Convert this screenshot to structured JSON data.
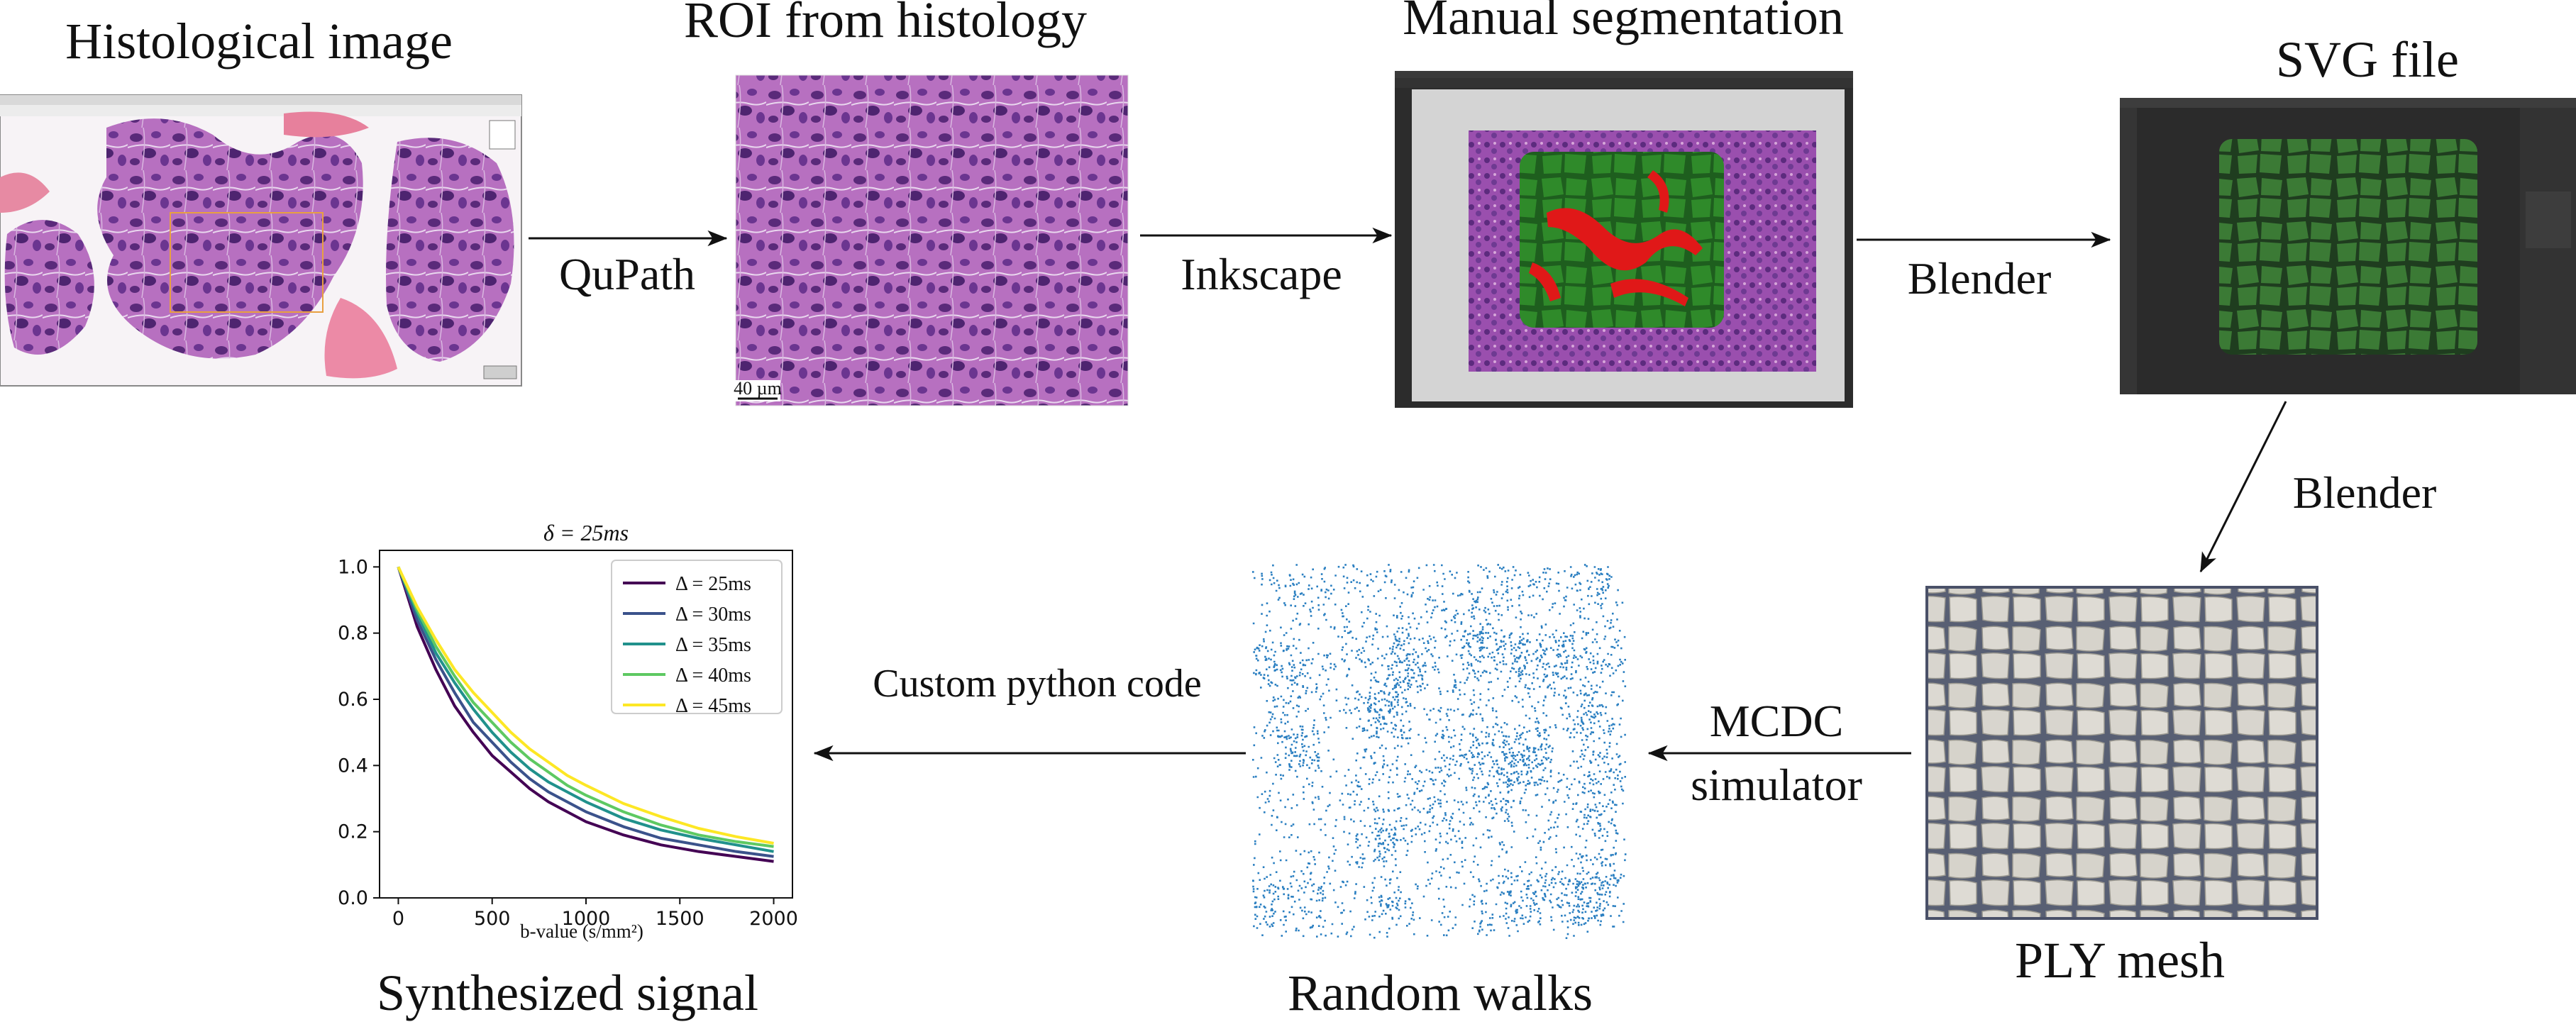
{
  "titles": {
    "histological_image": "Histological image",
    "roi": "ROI from histology",
    "manual_segmentation": "Manual segmentation",
    "svg_file": "SVG file",
    "ply_mesh": "PLY mesh",
    "random_walks": "Random walks",
    "synthesized_signal": "Synthesized signal"
  },
  "tools": {
    "qupath": "QuPath",
    "inkscape": "Inkscape",
    "blender_1": "Blender",
    "blender_2": "Blender",
    "mcdc_line1": "MCDC",
    "mcdc_line2": "simulator",
    "custom_code": "Custom python code"
  },
  "roi_scale_bar": "40 µm",
  "colors": {
    "tissue": "#9c4aa6",
    "segmentation_green": "#2f8a2a",
    "segmentation_red": "#e01818",
    "blender_bg": "#2b2b2b",
    "mesh_cell": "#d9d6cf",
    "mesh_bg": "#4a5168",
    "walk_points": "#2a7fc1"
  },
  "chart_data": {
    "type": "line",
    "title": "δ = 25ms",
    "xlabel": "b-value (s/mm²)",
    "ylabel": "",
    "xlim": [
      0,
      2000
    ],
    "ylim": [
      0,
      1.05
    ],
    "xticks": [
      0,
      500,
      1000,
      1500,
      2000
    ],
    "yticks": [
      0.0,
      0.2,
      0.4,
      0.6,
      0.8,
      1.0
    ],
    "legend_position": "top-right",
    "x": [
      0,
      100,
      200,
      300,
      400,
      500,
      600,
      700,
      800,
      900,
      1000,
      1200,
      1400,
      1600,
      1800,
      2000
    ],
    "series": [
      {
        "name": "Δ = 25ms",
        "color": "#440154",
        "values": [
          1.0,
          0.82,
          0.69,
          0.58,
          0.5,
          0.43,
          0.38,
          0.33,
          0.29,
          0.26,
          0.23,
          0.19,
          0.16,
          0.14,
          0.125,
          0.11
        ]
      },
      {
        "name": "Δ = 30ms",
        "color": "#3b528b",
        "values": [
          1.0,
          0.84,
          0.72,
          0.62,
          0.53,
          0.47,
          0.41,
          0.36,
          0.32,
          0.29,
          0.26,
          0.215,
          0.18,
          0.16,
          0.14,
          0.125
        ]
      },
      {
        "name": "Δ = 35ms",
        "color": "#21918c",
        "values": [
          1.0,
          0.86,
          0.74,
          0.65,
          0.57,
          0.5,
          0.44,
          0.39,
          0.35,
          0.32,
          0.29,
          0.24,
          0.205,
          0.18,
          0.16,
          0.14
        ]
      },
      {
        "name": "Δ = 40ms",
        "color": "#5ec962",
        "values": [
          1.0,
          0.87,
          0.76,
          0.67,
          0.59,
          0.53,
          0.47,
          0.42,
          0.38,
          0.34,
          0.31,
          0.26,
          0.22,
          0.19,
          0.17,
          0.155
        ]
      },
      {
        "name": "Δ = 45ms",
        "color": "#fde725",
        "values": [
          1.0,
          0.88,
          0.78,
          0.69,
          0.62,
          0.56,
          0.5,
          0.45,
          0.41,
          0.37,
          0.34,
          0.285,
          0.245,
          0.21,
          0.185,
          0.165
        ]
      }
    ]
  }
}
